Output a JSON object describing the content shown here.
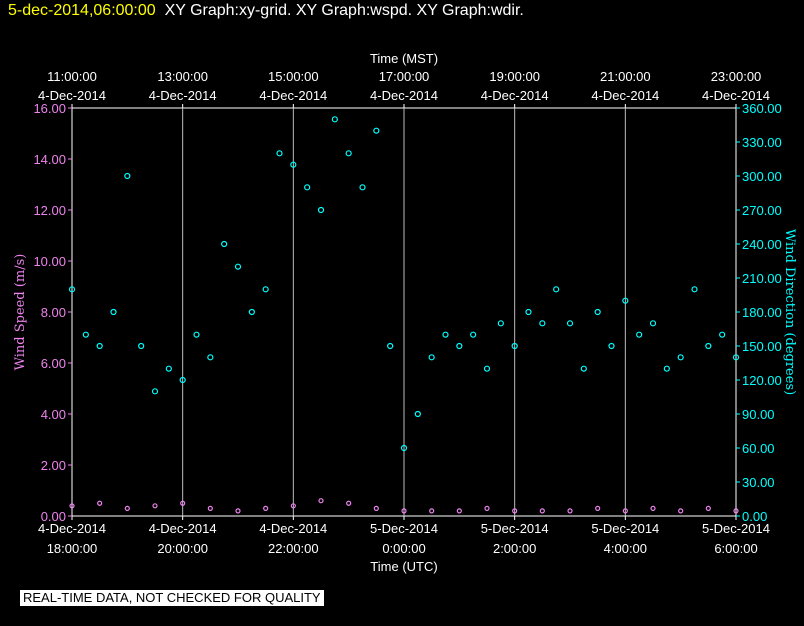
{
  "header": {
    "datetime": "5-dec-2014,06:00:00",
    "graphs": "XY Graph:xy-grid.  XY Graph:wspd.  XY Graph:wdir."
  },
  "notice": "REAL-TIME DATA, NOT CHECKED FOR QUALITY",
  "colors": {
    "background": "#000000",
    "speed": "#ee82ee",
    "direction": "#00ffff",
    "grid": "#ffffff",
    "header_date": "#ffff00"
  },
  "chart_data": {
    "type": "scatter",
    "xlabel_top": "Time (MST)",
    "xlabel_bottom": "Time (UTC)",
    "ylabel_left": "Wind Speed (m/s)",
    "ylabel_right": "Wind Direction (degrees)",
    "grid": true,
    "x_ticks": [
      {
        "top_time": "11:00:00",
        "top_date": "4-Dec-2014",
        "bottom_date": "4-Dec-2014",
        "bottom_time": "18:00:00"
      },
      {
        "top_time": "13:00:00",
        "top_date": "4-Dec-2014",
        "bottom_date": "4-Dec-2014",
        "bottom_time": "20:00:00"
      },
      {
        "top_time": "15:00:00",
        "top_date": "4-Dec-2014",
        "bottom_date": "4-Dec-2014",
        "bottom_time": "22:00:00"
      },
      {
        "top_time": "17:00:00",
        "top_date": "4-Dec-2014",
        "bottom_date": "5-Dec-2014",
        "bottom_time": "0:00:00"
      },
      {
        "top_time": "19:00:00",
        "top_date": "4-Dec-2014",
        "bottom_date": "5-Dec-2014",
        "bottom_time": "2:00:00"
      },
      {
        "top_time": "21:00:00",
        "top_date": "4-Dec-2014",
        "bottom_date": "5-Dec-2014",
        "bottom_time": "4:00:00"
      },
      {
        "top_time": "23:00:00",
        "top_date": "4-Dec-2014",
        "bottom_date": "5-Dec-2014",
        "bottom_time": "6:00:00"
      }
    ],
    "y_left_ticks": [
      "0.00",
      "2.00",
      "4.00",
      "6.00",
      "8.00",
      "10.00",
      "12.00",
      "14.00",
      "16.00"
    ],
    "y_right_ticks": [
      "0.00",
      "30.00",
      "60.00",
      "90.00",
      "120.00",
      "150.00",
      "180.00",
      "210.00",
      "240.00",
      "270.00",
      "300.00",
      "330.00",
      "360.00"
    ],
    "ylim_left": [
      0,
      16
    ],
    "ylim_right": [
      0,
      360
    ],
    "xlim_hours_utc": [
      18,
      30
    ],
    "series": [
      {
        "axis": "left",
        "color": "#ee82ee",
        "x": [
          18.0,
          18.5,
          19.0,
          19.5,
          20.0,
          20.5,
          21.0,
          21.5,
          22.0,
          22.5,
          23.0,
          23.5,
          24.0,
          24.5,
          25.0,
          25.5,
          26.0,
          26.5,
          27.0,
          27.5,
          28.0,
          28.5,
          29.0,
          29.5,
          30.0
        ],
        "values": [
          0.4,
          0.5,
          0.3,
          0.4,
          0.5,
          0.3,
          0.2,
          0.3,
          0.4,
          0.6,
          0.5,
          0.3,
          0.2,
          0.2,
          0.2,
          0.3,
          0.2,
          0.2,
          0.2,
          0.3,
          0.2,
          0.3,
          0.2,
          0.3,
          0.2
        ]
      },
      {
        "axis": "right",
        "color": "#00ffff",
        "x": [
          18.0,
          18.25,
          18.5,
          18.75,
          19.0,
          19.25,
          19.5,
          19.75,
          20.0,
          20.25,
          20.5,
          20.75,
          21.0,
          21.25,
          21.5,
          21.75,
          22.0,
          22.25,
          22.5,
          22.75,
          23.0,
          23.25,
          23.5,
          23.75,
          24.0,
          24.25,
          24.5,
          24.75,
          25.0,
          25.25,
          25.5,
          25.75,
          26.0,
          26.25,
          26.5,
          26.75,
          27.0,
          27.25,
          27.5,
          27.75,
          28.0,
          28.25,
          28.5,
          28.75,
          29.0,
          29.25,
          29.5,
          29.75,
          30.0
        ],
        "values": [
          200,
          160,
          150,
          180,
          300,
          150,
          110,
          130,
          120,
          160,
          140,
          240,
          220,
          180,
          200,
          320,
          310,
          290,
          270,
          350,
          320,
          290,
          340,
          150,
          60,
          90,
          140,
          160,
          150,
          160,
          130,
          170,
          150,
          180,
          170,
          200,
          170,
          130,
          180,
          150,
          190,
          160,
          170,
          130,
          140,
          200,
          150,
          160,
          140
        ]
      }
    ]
  }
}
